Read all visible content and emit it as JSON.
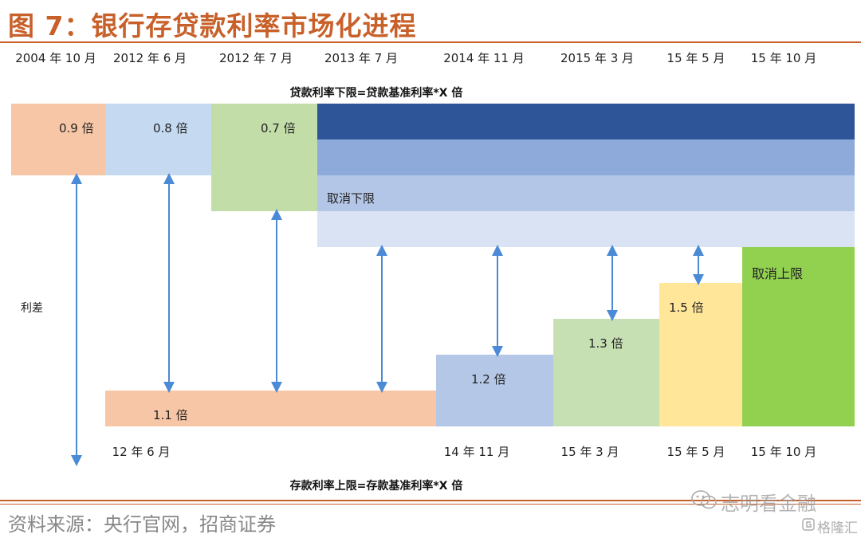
{
  "header": {
    "title": "图 7：银行存贷款利率市场化进程"
  },
  "top_dates": [
    "2004 年 10 月",
    "2012 年 6 月",
    "2012 年 7 月",
    "2013 年 7 月",
    "2014 年 11 月",
    "2015 年 3 月",
    "15 年 5 月",
    "15 年 10 月"
  ],
  "loan_caption": "贷款利率下限=贷款基准利率*X 倍",
  "deposit_caption": "存款利率上限=存款基准利率*X 倍",
  "loan_floors": [
    {
      "label": "0.9 倍"
    },
    {
      "label": "0.8 倍"
    },
    {
      "label": "0.7 倍"
    },
    {
      "label": "取消下限"
    }
  ],
  "deposit_caps": [
    {
      "label": "1.1 倍"
    },
    {
      "label": "1.2 倍"
    },
    {
      "label": "1.3 倍"
    },
    {
      "label": "1.5 倍"
    },
    {
      "label": "取消上限"
    }
  ],
  "spread_label": "利差",
  "bottom_dates": [
    "12 年 6 月",
    "14 年 11 月",
    "15 年 3 月",
    "15 年 5 月",
    "15 年 10 月"
  ],
  "footer": {
    "source": "资料来源：央行官网，招商证券"
  },
  "watermark": {
    "text": "志明看金融",
    "brand": "格隆汇"
  },
  "colors": {
    "accent": "#c8602a",
    "salmon": "#f6c6a6",
    "light_blue": "#c5d9f1",
    "light_green": "#c3dda8",
    "dark_navy": "#2e5597",
    "mid_blue": "#8eaadb",
    "periwinkle": "#b4c6e7",
    "pale_blue": "#dae3f3",
    "cornflower": "#b4c7e7",
    "pale_green": "#c6e0b4",
    "pale_yellow": "#ffe699",
    "bright_green": "#92d050",
    "arrow": "#4a8ad6"
  }
}
